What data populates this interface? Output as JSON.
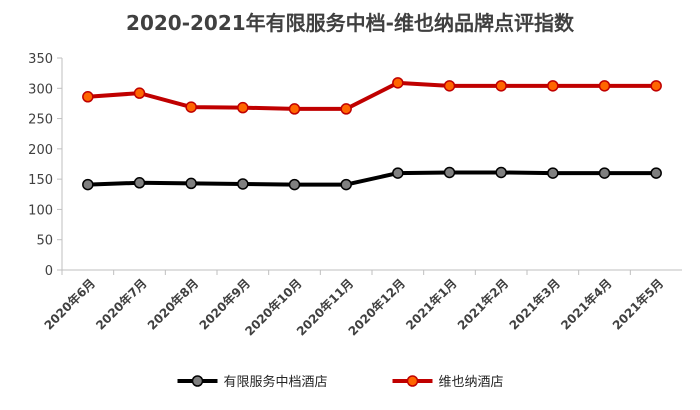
{
  "chart_data": {
    "type": "line",
    "title": "2020-2021年有限服务中档-维也纳品牌点评指数",
    "xlabel": "",
    "ylabel": "",
    "categories": [
      "2020年6月",
      "2020年7月",
      "2020年8月",
      "2020年9月",
      "2020年10月",
      "2020年11月",
      "2020年12月",
      "2021年1月",
      "2021年2月",
      "2021年3月",
      "2021年4月",
      "2021年5月"
    ],
    "ylim": [
      0,
      350
    ],
    "yticks": [
      0,
      50,
      100,
      150,
      200,
      250,
      300,
      350
    ],
    "grid": false,
    "legend_position": "bottom",
    "series": [
      {
        "name": "有限服务中档酒店",
        "color": "#000000",
        "marker_color": "#7f7f7f",
        "values": [
          141,
          144,
          143,
          142,
          141,
          141,
          160,
          161,
          161,
          160,
          160,
          160
        ]
      },
      {
        "name": "维也纳酒店",
        "color": "#c00000",
        "marker_color": "#ff6600",
        "values": [
          286,
          292,
          269,
          268,
          266,
          266,
          309,
          304,
          304,
          304,
          304,
          304
        ]
      }
    ]
  }
}
